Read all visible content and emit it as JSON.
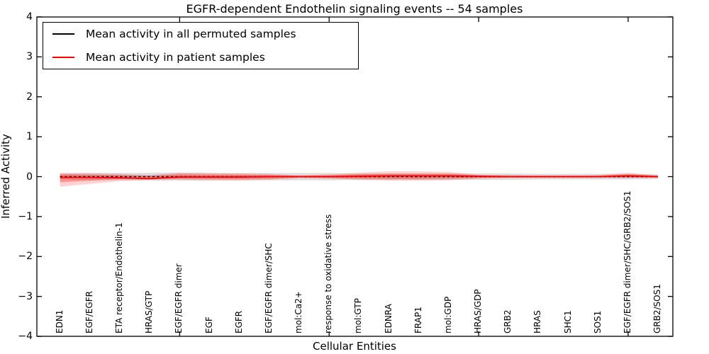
{
  "chart_data": {
    "type": "line",
    "title": "EGFR-dependent Endothelin signaling events -- 54 samples",
    "xlabel": "Cellular Entities",
    "ylabel": "Inferred Activity",
    "ylim": [
      -4,
      4
    ],
    "ytick_values": [
      4,
      3,
      2,
      1,
      0,
      -1,
      -2,
      -3,
      -4
    ],
    "ytick_labels": [
      "4",
      "3",
      "2",
      "1",
      "0",
      "−1",
      "−2",
      "−3",
      "−4"
    ],
    "xtick_indices": [
      4,
      9,
      14,
      19
    ],
    "grid": false,
    "legend_position": "upper left",
    "categories": [
      "EDN1",
      "EGF/EGFR",
      "ETA receptor/Endothelin-1",
      "HRAS/GTP",
      "EGF/EGFR dimer",
      "EGF",
      "EGFR",
      "EGF/EGFR dimer/SHC",
      "mol:Ca2+",
      "response to oxidative stress",
      "mol:GTP",
      "EDNRA",
      "FRAP1",
      "mol:GDP",
      "HRAS/GDP",
      "GRB2",
      "HRAS",
      "SHC1",
      "SOS1",
      "EGF/EGFR dimer/SHC/GRB2/SOS1",
      "GRB2/SOS1"
    ],
    "series": [
      {
        "name": "Mean activity in all permuted samples",
        "color": "#000000",
        "style": "dashed",
        "values": [
          0,
          0,
          0,
          0,
          0,
          0,
          0,
          0,
          0,
          0,
          0,
          0,
          0,
          0,
          0,
          0,
          0,
          0,
          0,
          0,
          0
        ]
      },
      {
        "name": "Mean activity in patient samples",
        "color": "#ff0000",
        "style": "solid",
        "values": [
          -0.02,
          -0.02,
          -0.03,
          -0.05,
          -0.01,
          -0.01,
          -0.01,
          0,
          0,
          0,
          0.01,
          0.02,
          0.02,
          0.02,
          0.01,
          0,
          0,
          0,
          0,
          0.02,
          0
        ]
      }
    ],
    "bands": [
      {
        "name": "permuted-std-band",
        "color": "#999999",
        "opacity": 0.32,
        "upper": [
          0.07,
          0.09,
          0.09,
          0.1,
          0.1,
          0.09,
          0.09,
          0.09,
          0.09,
          0.09,
          0.08,
          0.08,
          0.08,
          0.08,
          0.08,
          0.08,
          0.07,
          0.07,
          0.07,
          0.07,
          0.06
        ],
        "lower": [
          -0.07,
          -0.09,
          -0.09,
          -0.1,
          -0.1,
          -0.09,
          -0.09,
          -0.09,
          -0.09,
          -0.09,
          -0.08,
          -0.08,
          -0.08,
          -0.08,
          -0.08,
          -0.08,
          -0.07,
          -0.07,
          -0.07,
          -0.07,
          -0.06
        ]
      },
      {
        "name": "patient-std-band-outer",
        "color": "#ff0000",
        "opacity": 0.18,
        "upper": [
          0.1,
          0.09,
          0.07,
          0.04,
          0.1,
          0.09,
          0.08,
          0.07,
          0.03,
          0.06,
          0.1,
          0.13,
          0.13,
          0.12,
          0.05,
          0.04,
          0.03,
          0.03,
          0.04,
          0.1,
          0.03
        ],
        "lower": [
          -0.25,
          -0.18,
          -0.11,
          -0.08,
          -0.08,
          -0.1,
          -0.1,
          -0.08,
          -0.04,
          -0.05,
          -0.08,
          -0.1,
          -0.1,
          -0.09,
          -0.05,
          -0.03,
          -0.03,
          -0.03,
          -0.03,
          -0.04,
          -0.03
        ]
      },
      {
        "name": "patient-std-band-inner",
        "color": "#ff0000",
        "opacity": 0.3,
        "upper": [
          0.06,
          0.05,
          0.04,
          0.02,
          0.06,
          0.05,
          0.05,
          0.04,
          0.02,
          0.03,
          0.06,
          0.07,
          0.07,
          0.07,
          0.03,
          0.02,
          0.02,
          0.02,
          0.02,
          0.06,
          0.02
        ],
        "lower": [
          -0.14,
          -0.1,
          -0.06,
          -0.05,
          -0.05,
          -0.06,
          -0.06,
          -0.05,
          -0.02,
          -0.03,
          -0.05,
          -0.06,
          -0.06,
          -0.05,
          -0.03,
          -0.02,
          -0.02,
          -0.02,
          -0.02,
          -0.02,
          -0.02
        ]
      }
    ],
    "legend": {
      "entries": [
        {
          "label": "Mean activity in all permuted samples",
          "color": "#000000"
        },
        {
          "label": "Mean activity in patient samples",
          "color": "#ff0000"
        }
      ]
    }
  }
}
